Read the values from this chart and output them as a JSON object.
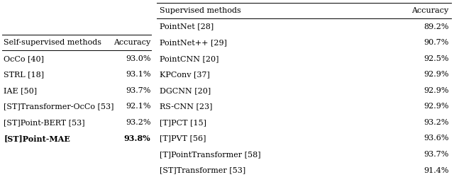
{
  "left_table": {
    "header": [
      "Self-supervised methods",
      "Accuracy"
    ],
    "rows": [
      [
        "OcCo [40]",
        "93.0%"
      ],
      [
        "STRL [18]",
        "93.1%"
      ],
      [
        "IAE [50]",
        "93.7%"
      ],
      [
        "[ST]Transformer-OcCo [53]",
        "92.1%"
      ],
      [
        "[ST]Point-BERT [53]",
        "93.2%"
      ],
      [
        "[ST]Point-MAE",
        "93.8%"
      ]
    ],
    "bold_last_row": true
  },
  "right_table": {
    "header": [
      "Supervised methods",
      "Accuracy"
    ],
    "rows": [
      [
        "PointNet [28]",
        "89.2%"
      ],
      [
        "PointNet++ [29]",
        "90.7%"
      ],
      [
        "PointCNN [20]",
        "92.5%"
      ],
      [
        "KPConv [37]",
        "92.9%"
      ],
      [
        "DGCNN [20]",
        "92.9%"
      ],
      [
        "RS-CNN [23]",
        "92.9%"
      ],
      [
        "[T]PCT [15]",
        "93.2%"
      ],
      [
        "[T]PVT [56]",
        "93.6%"
      ],
      [
        "[T]PointTransformer [58]",
        "93.7%"
      ],
      [
        "[ST]Transformer [53]",
        "91.4%"
      ]
    ],
    "bold_last_row": false
  },
  "font_size": 8.0,
  "header_font_size": 8.0,
  "bg_color": "#ffffff",
  "line_color": "#000000",
  "text_color": "#000000"
}
